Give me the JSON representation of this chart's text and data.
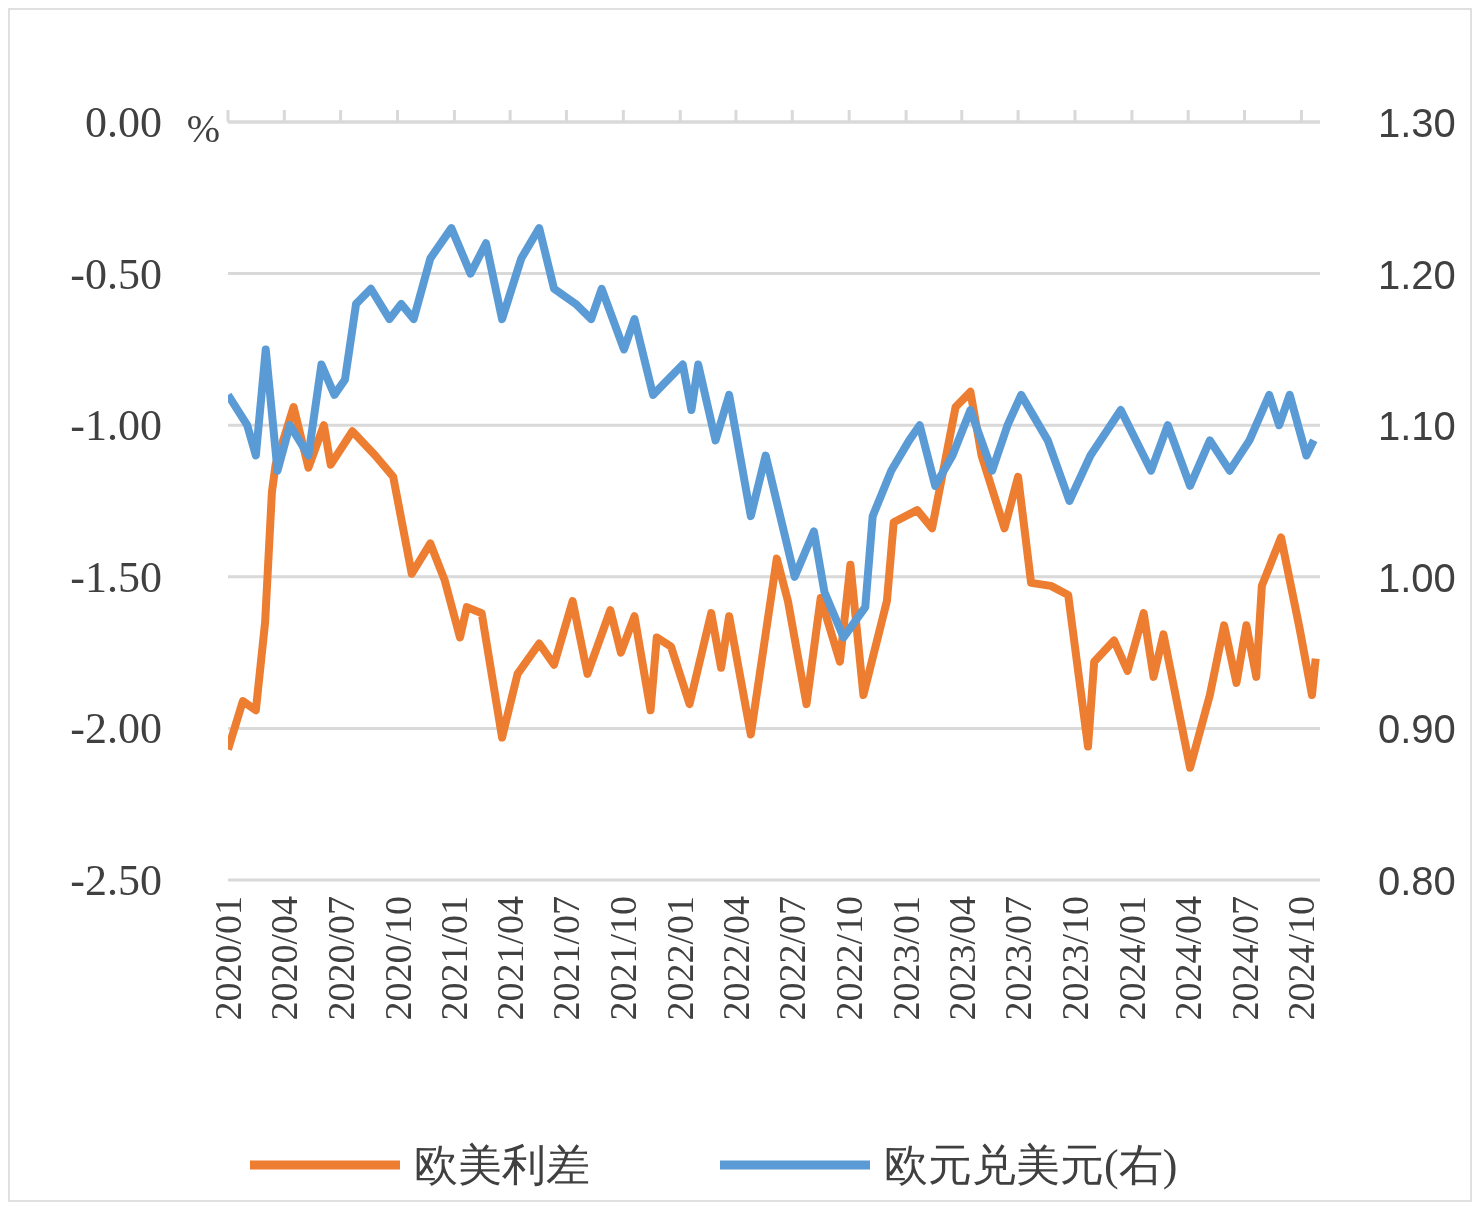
{
  "chart_data": {
    "type": "line",
    "ylabel": "%",
    "legend": "bottom",
    "grid": "y",
    "line_style": "solid",
    "marker": "none",
    "xlim": [
      "2020-01-01",
      "2024-10-31"
    ],
    "xticks": [
      {
        "value": "2020-01",
        "label": "2020/01"
      },
      {
        "value": "2020-04",
        "label": "2020/04"
      },
      {
        "value": "2020-07",
        "label": "2020/07"
      },
      {
        "value": "2020-10",
        "label": "2020/10"
      },
      {
        "value": "2021-01",
        "label": "2021/01"
      },
      {
        "value": "2021-04",
        "label": "2021/04"
      },
      {
        "value": "2021-07",
        "label": "2021/07"
      },
      {
        "value": "2021-10",
        "label": "2021/10"
      },
      {
        "value": "2022-01",
        "label": "2022/01"
      },
      {
        "value": "2022-04",
        "label": "2022/04"
      },
      {
        "value": "2022-07",
        "label": "2022/07"
      },
      {
        "value": "2022-10",
        "label": "2022/10"
      },
      {
        "value": "2023-01",
        "label": "2023/01"
      },
      {
        "value": "2023-04",
        "label": "2023/04"
      },
      {
        "value": "2023-07",
        "label": "2023/07"
      },
      {
        "value": "2023-10",
        "label": "2023/10"
      },
      {
        "value": "2024-01",
        "label": "2024/01"
      },
      {
        "value": "2024-04",
        "label": "2024/04"
      },
      {
        "value": "2024-07",
        "label": "2024/07"
      },
      {
        "value": "2024-10",
        "label": "2024/10"
      }
    ],
    "ylim": [
      -2.5,
      0
    ],
    "yticks": [
      {
        "value": -2.5,
        "label": "-2.50"
      },
      {
        "value": -2,
        "label": "-2.00"
      },
      {
        "value": -1.5,
        "label": "-1.50"
      },
      {
        "value": -1,
        "label": "-1.00"
      },
      {
        "value": -0.5,
        "label": "-0.50"
      },
      {
        "value": 0,
        "label": "0.00"
      }
    ],
    "y2lim": [
      0.8,
      1.3
    ],
    "y2ticks": [
      {
        "value": 0.8,
        "label": "0.80"
      },
      {
        "value": 0.9,
        "label": "0.90"
      },
      {
        "value": 1,
        "label": "1.00"
      },
      {
        "value": 1.1,
        "label": "1.10"
      },
      {
        "value": 1.2,
        "label": "1.20"
      },
      {
        "value": 1.3,
        "label": "1.30"
      }
    ],
    "series": [
      {
        "name": "欧美利差",
        "color": "#ed7d31",
        "x": [
          "2020-01-01",
          "2020-01-25",
          "2020-02-15",
          "2020-03-01",
          "2020-03-12",
          "2020-03-18",
          "2020-04-16",
          "2020-05-10",
          "2020-06-04",
          "2020-06-15",
          "2020-07-20",
          "2020-08-26",
          "2020-09-24",
          "2020-10-24",
          "2020-11-23",
          "2020-12-16",
          "2021-01-10",
          "2021-01-21",
          "2021-02-14",
          "2021-03-19",
          "2021-04-13",
          "2021-05-18",
          "2021-06-11",
          "2021-07-11",
          "2021-08-04",
          "2021-09-10",
          "2021-09-27",
          "2021-10-19",
          "2021-11-14",
          "2021-11-24",
          "2021-12-17",
          "2022-01-16",
          "2022-02-20",
          "2022-03-08",
          "2022-03-21",
          "2022-04-25",
          "2022-06-06",
          "2022-06-24",
          "2022-07-24",
          "2022-08-16",
          "2022-09-16",
          "2022-10-03",
          "2022-10-24",
          "2022-12-01",
          "2022-12-12",
          "2023-01-19",
          "2023-02-12",
          "2023-03-22",
          "2023-04-15",
          "2023-05-03",
          "2023-06-09",
          "2023-07-01",
          "2023-07-22",
          "2023-08-23",
          "2023-09-20",
          "2023-10-22",
          "2023-11-01",
          "2023-12-03",
          "2023-12-25",
          "2024-01-20",
          "2024-02-05",
          "2024-02-21",
          "2024-04-04",
          "2024-05-06",
          "2024-05-29",
          "2024-06-18",
          "2024-07-04",
          "2024-07-20",
          "2024-07-29",
          "2024-08-29",
          "2024-09-28",
          "2024-10-18",
          "2024-10-24"
        ],
        "values": [
          -2.07,
          -1.91,
          -1.94,
          -1.65,
          -1.22,
          -1.13,
          -0.94,
          -1.14,
          -1.0,
          -1.13,
          -1.02,
          -1.1,
          -1.17,
          -1.49,
          -1.39,
          -1.51,
          -1.7,
          -1.6,
          -1.62,
          -2.03,
          -1.82,
          -1.72,
          -1.79,
          -1.58,
          -1.82,
          -1.61,
          -1.75,
          -1.63,
          -1.94,
          -1.7,
          -1.73,
          -1.92,
          -1.62,
          -1.8,
          -1.63,
          -2.02,
          -1.44,
          -1.58,
          -1.92,
          -1.57,
          -1.78,
          -1.46,
          -1.89,
          -1.58,
          -1.32,
          -1.28,
          -1.34,
          -0.94,
          -0.89,
          -1.1,
          -1.34,
          -1.17,
          -1.52,
          -1.53,
          -1.56,
          -2.06,
          -1.78,
          -1.71,
          -1.81,
          -1.62,
          -1.83,
          -1.69,
          -2.13,
          -1.89,
          -1.66,
          -1.85,
          -1.66,
          -1.83,
          -1.53,
          -1.37,
          -1.67,
          -1.89,
          -1.77
        ]
      },
      {
        "name": "欧元兑美元(右)",
        "color": "#5b9bd5",
        "axis": "y2",
        "x": [
          "2020-01-01",
          "2020-02-01",
          "2020-02-15",
          "2020-03-02",
          "2020-03-21",
          "2020-04-10",
          "2020-05-10",
          "2020-05-31",
          "2020-06-21",
          "2020-07-08",
          "2020-07-26",
          "2020-08-19",
          "2020-09-18",
          "2020-10-07",
          "2020-10-27",
          "2020-11-23",
          "2020-12-27",
          "2021-01-27",
          "2021-02-21",
          "2021-03-19",
          "2021-04-19",
          "2021-05-18",
          "2021-06-11",
          "2021-07-16",
          "2021-08-10",
          "2021-08-27",
          "2021-10-02",
          "2021-10-19",
          "2021-11-18",
          "2022-01-05",
          "2022-01-19",
          "2022-01-30",
          "2022-02-27",
          "2022-03-21",
          "2022-04-25",
          "2022-05-19",
          "2022-07-05",
          "2022-08-05",
          "2022-08-22",
          "2022-09-22",
          "2022-10-27",
          "2022-11-08",
          "2022-12-08",
          "2023-01-06",
          "2023-01-23",
          "2023-02-17",
          "2023-03-17",
          "2023-04-15",
          "2023-05-20",
          "2023-06-14",
          "2023-07-06",
          "2023-08-18",
          "2023-09-22",
          "2023-10-26",
          "2023-12-14",
          "2024-02-01",
          "2024-02-28",
          "2024-04-04",
          "2024-05-06",
          "2024-06-07",
          "2024-07-09",
          "2024-08-10",
          "2024-08-26",
          "2024-09-12",
          "2024-10-09",
          "2024-10-21"
        ],
        "values": [
          1.12,
          1.1,
          1.08,
          1.15,
          1.07,
          1.1,
          1.08,
          1.14,
          1.12,
          1.13,
          1.18,
          1.19,
          1.17,
          1.18,
          1.17,
          1.21,
          1.23,
          1.2,
          1.22,
          1.17,
          1.21,
          1.23,
          1.19,
          1.18,
          1.17,
          1.19,
          1.15,
          1.17,
          1.12,
          1.14,
          1.11,
          1.14,
          1.09,
          1.12,
          1.04,
          1.08,
          1.0,
          1.03,
          0.99,
          0.96,
          0.98,
          1.04,
          1.07,
          1.09,
          1.1,
          1.06,
          1.08,
          1.11,
          1.07,
          1.1,
          1.12,
          1.09,
          1.05,
          1.08,
          1.11,
          1.07,
          1.1,
          1.06,
          1.09,
          1.07,
          1.09,
          1.12,
          1.1,
          1.12,
          1.08,
          1.09
        ]
      }
    ]
  }
}
